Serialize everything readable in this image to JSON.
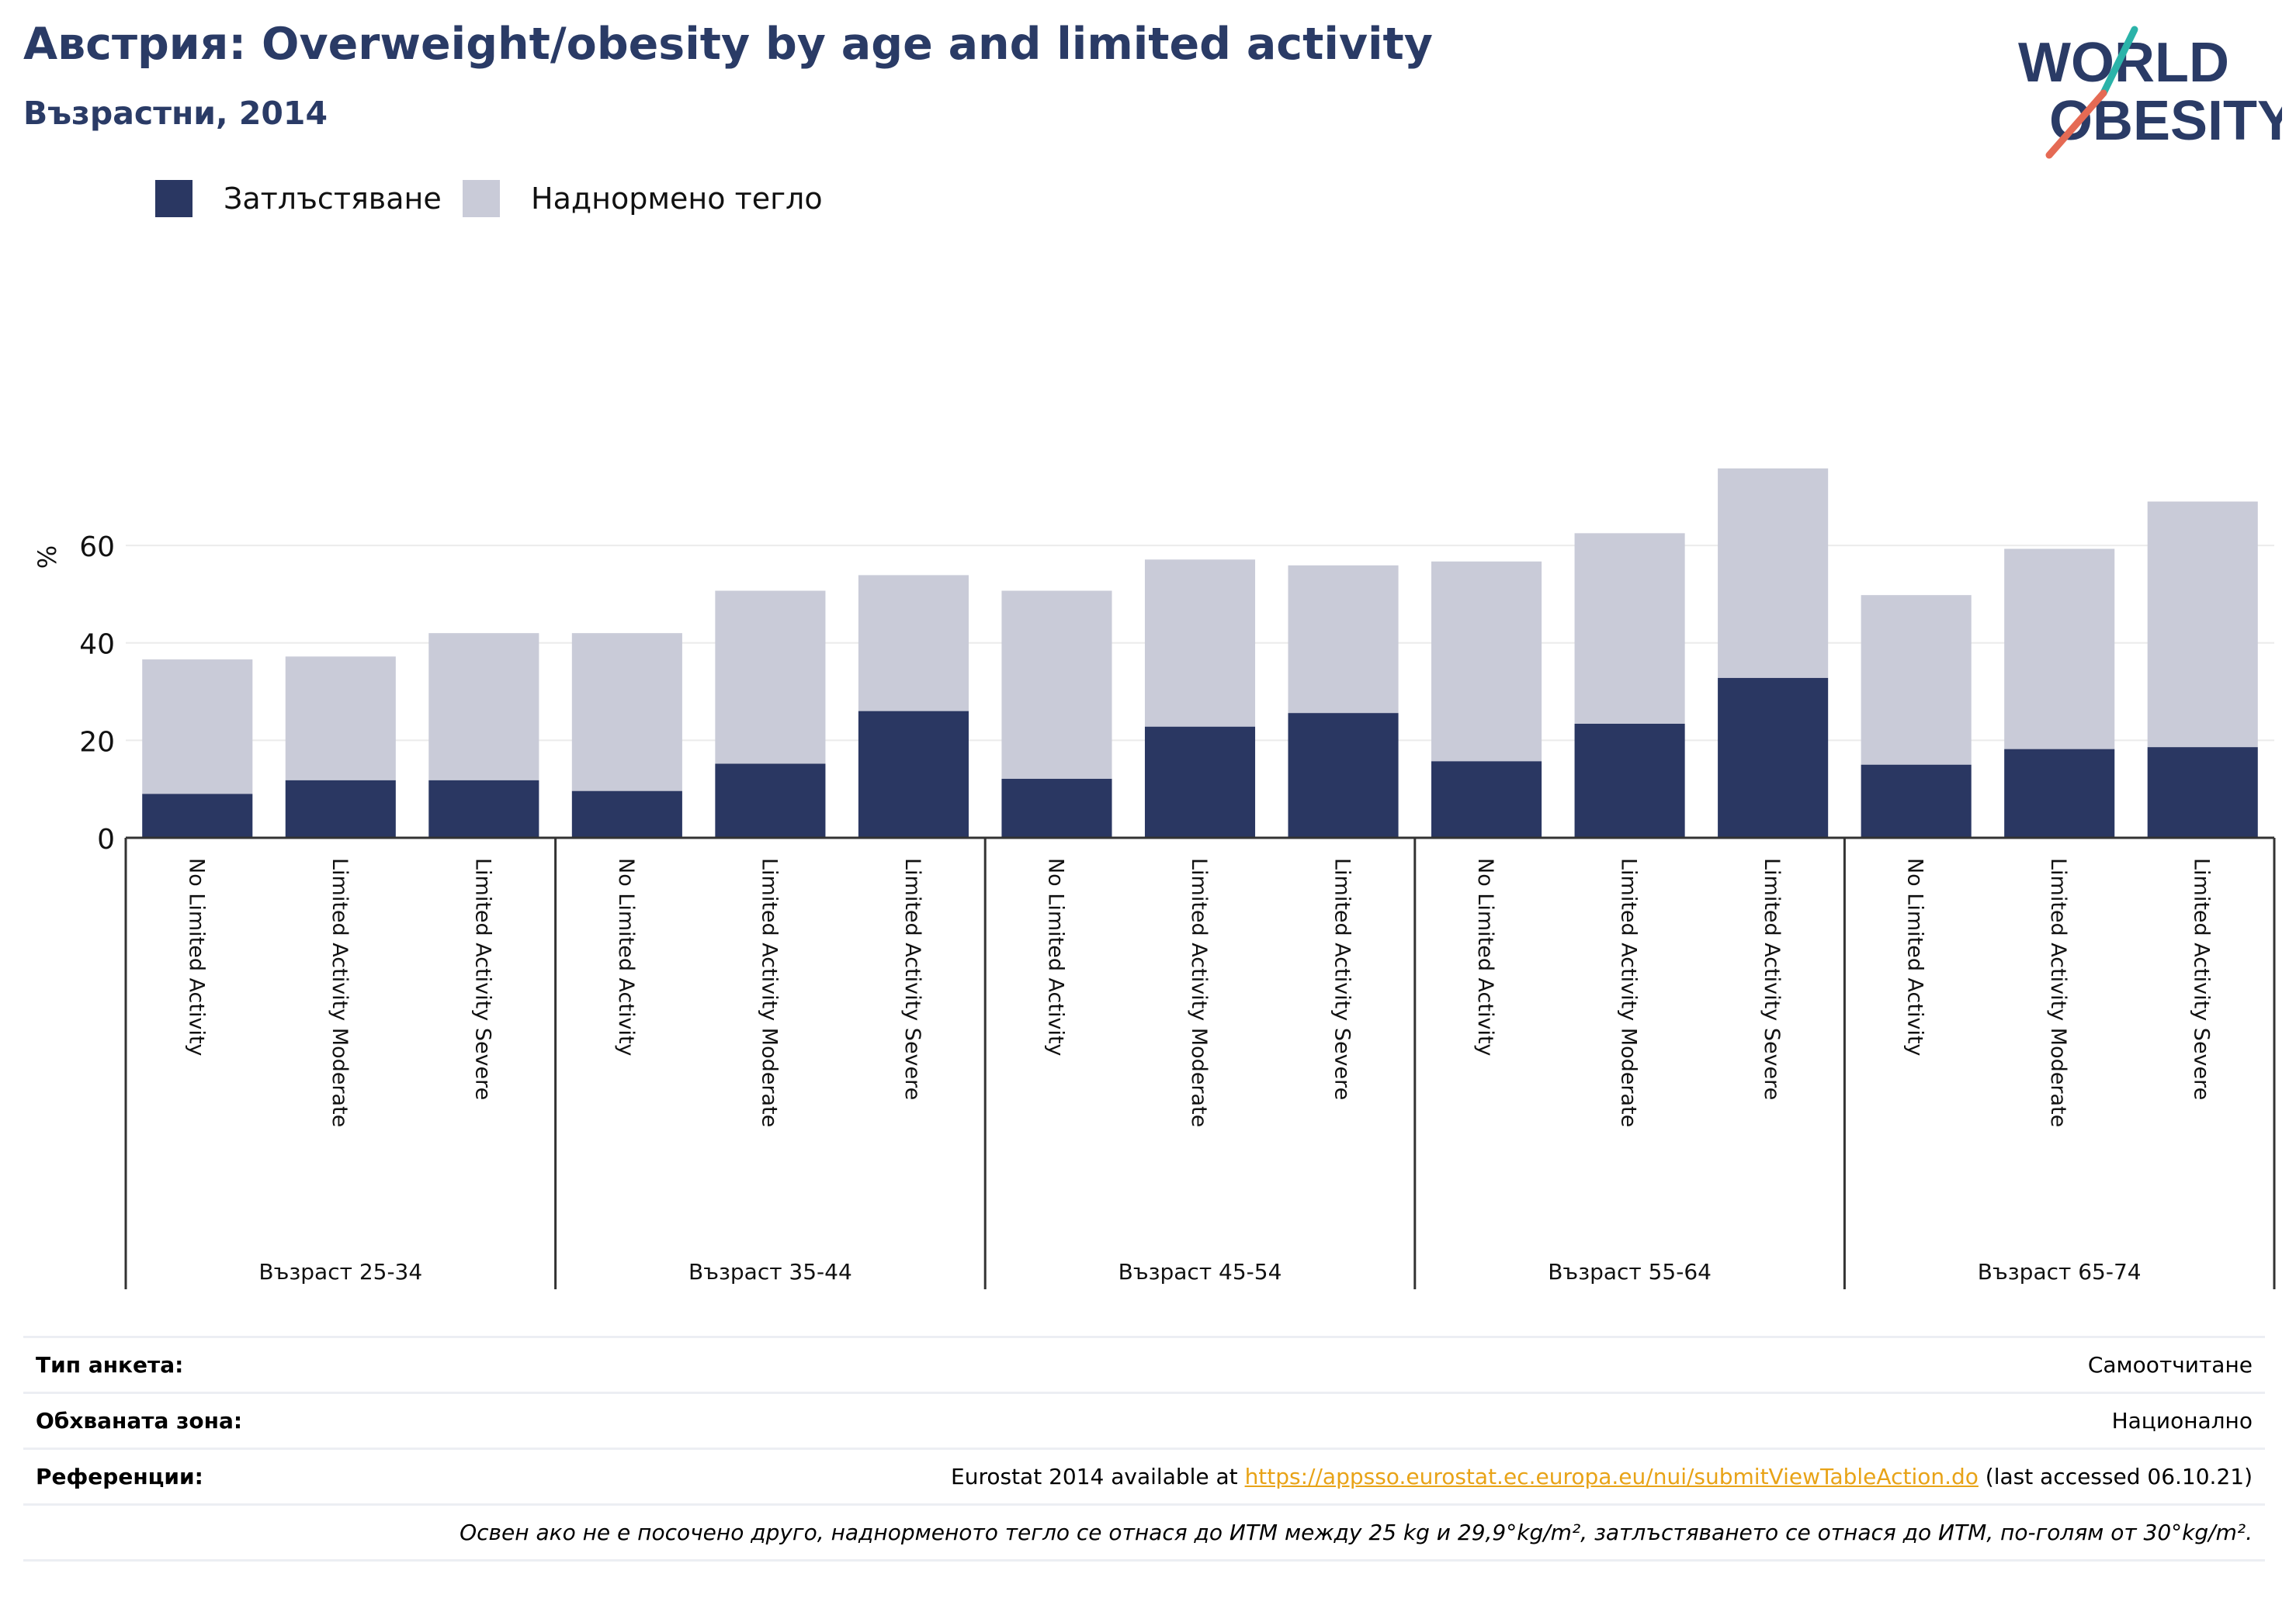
{
  "header": {
    "title": "Австрия: Overweight/obesity by age and limited activity",
    "subtitle": "Възрастни, 2014"
  },
  "logo": {
    "line1": "WORLD",
    "line2": "OBESITY",
    "colors": {
      "text": "#2a3b66",
      "slash_teal": "#2bb3a9",
      "slash_coral": "#e56a54"
    }
  },
  "legend": {
    "items": [
      {
        "label": "Затлъстяване",
        "color": "#2a3762"
      },
      {
        "label": "Наднормено тегло",
        "color": "#c9cbd8"
      }
    ]
  },
  "chart_data": {
    "type": "bar",
    "stacked": true,
    "title": "Австрия: Overweight/obesity by age and limited activity",
    "subtitle": "Възрастни, 2014",
    "ylabel": "%",
    "xlabel": "",
    "ylim": [
      0,
      78
    ],
    "yticks": [
      0,
      20,
      40,
      60
    ],
    "grid": true,
    "legend_position": "top-left",
    "groups": [
      {
        "label": "Възраст 25-34",
        "categories": [
          "No Limited Activity",
          "Limited Activity Moderate",
          "Limited Activity Severe"
        ]
      },
      {
        "label": "Възраст 35-44",
        "categories": [
          "No Limited Activity",
          "Limited Activity Moderate",
          "Limited Activity Severe"
        ]
      },
      {
        "label": "Възраст 45-54",
        "categories": [
          "No Limited Activity",
          "Limited Activity Moderate",
          "Limited Activity Severe"
        ]
      },
      {
        "label": "Възраст 55-64",
        "categories": [
          "No Limited Activity",
          "Limited Activity Moderate",
          "Limited Activity Severe"
        ]
      },
      {
        "label": "Възраст 65-74",
        "categories": [
          "No Limited Activity",
          "Limited Activity Moderate",
          "Limited Activity Severe"
        ]
      }
    ],
    "series": [
      {
        "name": "Затлъстяване",
        "color": "#2a3762",
        "values": [
          9.0,
          11.8,
          11.8,
          9.6,
          15.2,
          26.0,
          12.1,
          22.8,
          25.6,
          15.7,
          23.4,
          32.8,
          15.0,
          18.2,
          18.6
        ]
      },
      {
        "name": "Наднормено тегло",
        "color": "#c9cbd8",
        "values": [
          27.6,
          25.4,
          30.2,
          32.4,
          35.5,
          27.9,
          38.6,
          34.3,
          30.3,
          41.0,
          39.1,
          43.0,
          34.8,
          41.1,
          50.4
        ]
      }
    ]
  },
  "meta": {
    "survey_type_label": "Тип анкета:",
    "survey_type_value": "Самоотчитане",
    "area_label": "Обхваната зона:",
    "area_value": "Национално",
    "refs_label": "Референции:",
    "refs_prefix": "Eurostat 2014 available at ",
    "refs_link": "https://appsso.eurostat.ec.europa.eu/nui/submitViewTableAction.do",
    "refs_suffix": " (last accessed 06.10.21)",
    "note": "Освен ако не е посочено друго, наднорменото тегло се отнася до ИТМ между 25 kg и 29,9°kg/m², затлъстяването се отнася до ИТМ, по-голям от 30°kg/m²."
  }
}
